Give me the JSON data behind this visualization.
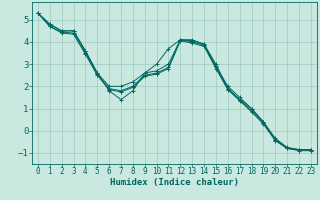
{
  "xlabel": "Humidex (Indice chaleur)",
  "bg_color": "#c8e8e0",
  "grid_color": "#a0c8c0",
  "line_color": "#006860",
  "xlim": [
    -0.5,
    23.5
  ],
  "ylim": [
    -1.5,
    5.8
  ],
  "xticks": [
    0,
    1,
    2,
    3,
    4,
    5,
    6,
    7,
    8,
    9,
    10,
    11,
    12,
    13,
    14,
    15,
    16,
    17,
    18,
    19,
    20,
    21,
    22,
    23
  ],
  "yticks": [
    -1,
    0,
    1,
    2,
    3,
    4,
    5
  ],
  "series": [
    [
      5.3,
      4.8,
      4.5,
      4.5,
      3.6,
      2.6,
      1.8,
      1.4,
      1.8,
      2.6,
      3.0,
      3.7,
      4.1,
      4.1,
      3.9,
      3.0,
      1.9,
      1.4,
      1.0,
      0.4,
      -0.4,
      -0.8,
      -0.85,
      -0.85
    ],
    [
      5.3,
      4.8,
      4.5,
      4.5,
      3.6,
      2.6,
      2.0,
      2.0,
      2.2,
      2.6,
      2.7,
      3.0,
      4.1,
      4.05,
      3.9,
      2.9,
      2.0,
      1.5,
      1.0,
      0.4,
      -0.35,
      -0.75,
      -0.85,
      -0.85
    ],
    [
      5.3,
      4.7,
      4.45,
      4.4,
      3.5,
      2.55,
      1.9,
      1.8,
      2.0,
      2.5,
      2.6,
      2.85,
      4.1,
      4.0,
      3.85,
      2.85,
      1.9,
      1.4,
      0.9,
      0.35,
      -0.4,
      -0.78,
      -0.87,
      -0.87
    ],
    [
      5.3,
      4.7,
      4.4,
      4.35,
      3.45,
      2.5,
      1.85,
      1.75,
      1.95,
      2.45,
      2.55,
      2.8,
      4.05,
      3.95,
      3.8,
      2.8,
      1.85,
      1.35,
      0.85,
      0.3,
      -0.45,
      -0.8,
      -0.9,
      -0.9
    ]
  ]
}
